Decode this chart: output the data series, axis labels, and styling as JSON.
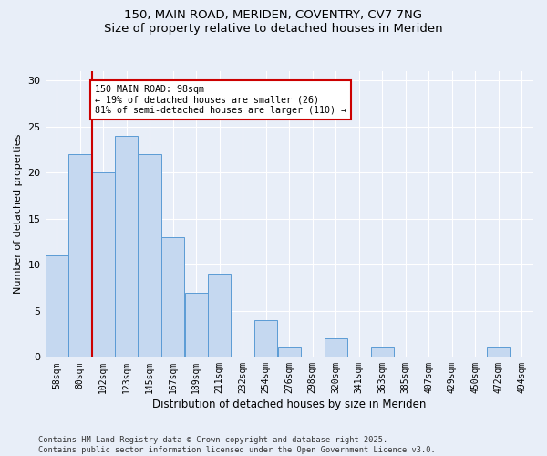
{
  "title": "150, MAIN ROAD, MERIDEN, COVENTRY, CV7 7NG",
  "subtitle": "Size of property relative to detached houses in Meriden",
  "xlabel": "Distribution of detached houses by size in Meriden",
  "ylabel": "Number of detached properties",
  "bins": [
    "58sqm",
    "80sqm",
    "102sqm",
    "123sqm",
    "145sqm",
    "167sqm",
    "189sqm",
    "211sqm",
    "232sqm",
    "254sqm",
    "276sqm",
    "298sqm",
    "320sqm",
    "341sqm",
    "363sqm",
    "385sqm",
    "407sqm",
    "429sqm",
    "450sqm",
    "472sqm",
    "494sqm"
  ],
  "values": [
    11,
    22,
    20,
    24,
    22,
    13,
    7,
    9,
    0,
    4,
    1,
    0,
    2,
    0,
    1,
    0,
    0,
    0,
    0,
    1,
    0
  ],
  "bar_color": "#c5d8f0",
  "bar_edge_color": "#5b9bd5",
  "vline_x_index": 2,
  "vline_color": "#cc0000",
  "annotation_text": "150 MAIN ROAD: 98sqm\n← 19% of detached houses are smaller (26)\n81% of semi-detached houses are larger (110) →",
  "annotation_box_color": "#ffffff",
  "annotation_box_edge": "#cc0000",
  "ylim": [
    0,
    31
  ],
  "yticks": [
    0,
    5,
    10,
    15,
    20,
    25,
    30
  ],
  "footer": "Contains HM Land Registry data © Crown copyright and database right 2025.\nContains public sector information licensed under the Open Government Licence v3.0.",
  "bg_color": "#e8eef8",
  "plot_bg_color": "#e8eef8",
  "title_fontsize": 10,
  "subtitle_fontsize": 9
}
